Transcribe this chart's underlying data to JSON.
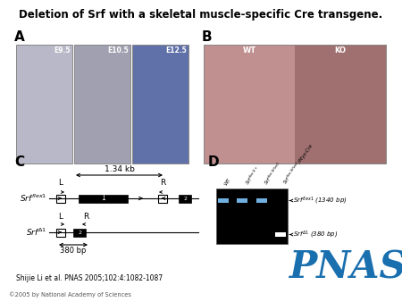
{
  "title": "Deletion of Srf with a skeletal muscle-specific Cre transgene.",
  "title_fontsize": 8.5,
  "bg_color": "#ffffff",
  "panel_A_label": "A",
  "panel_B_label": "B",
  "panel_C_label": "C",
  "panel_D_label": "D",
  "embryo_labels": [
    "E9.5",
    "E10.5",
    "E12.5"
  ],
  "embryo_colors": [
    "#b8b8c8",
    "#a0a0b0",
    "#6070a8"
  ],
  "wt_color": "#c09090",
  "ko_color": "#a07070",
  "kb_label": "1.34 kb",
  "bp_label": "380 bp",
  "citation": "Shijie Li et al. PNAS 2005;102:4:1082-1087",
  "copyright": "©2005 by National Academy of Sciences",
  "pnas_color": "#1a6faf",
  "gel_bg": "#000000",
  "gel_band_color": "#70b0e0",
  "gel_band2_color": "#ffffff"
}
